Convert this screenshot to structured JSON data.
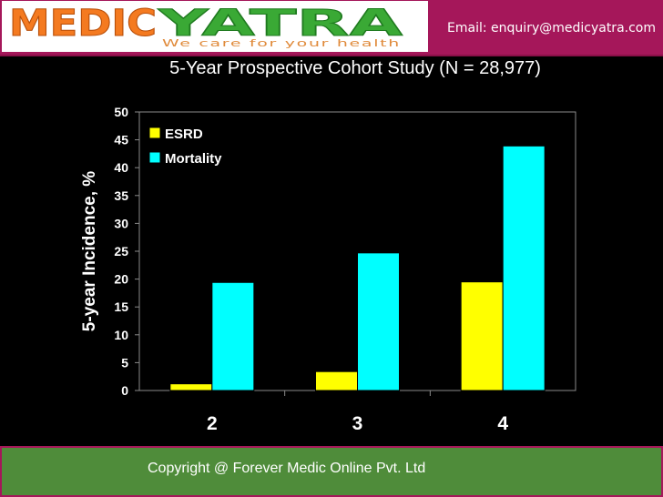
{
  "header": {
    "logo_text_left": "MEDIC",
    "logo_text_right": "YATRA",
    "tagline": "We care for your health",
    "email": "Email: enquiry@medicyatra.com",
    "colors": {
      "bar": "#a5175a",
      "logo_orange": "#f47a20",
      "logo_green": "#3aa935"
    }
  },
  "footer": {
    "copyright": "Copyright @ Forever Medic Online Pvt. Ltd",
    "colors": {
      "border": "#a5175a",
      "background": "#4f8c3a"
    }
  },
  "chart_data": {
    "type": "bar",
    "title": "5-Year Prospective Cohort Study (N = 28,977)",
    "xlabel": "",
    "ylabel": "5-year Incidence, %",
    "categories": [
      "2",
      "3",
      "4"
    ],
    "series": [
      {
        "name": "ESRD",
        "values": [
          1.2,
          3.4,
          19.5
        ],
        "color": "#ffff00"
      },
      {
        "name": "Mortality",
        "values": [
          19.4,
          24.7,
          43.9
        ],
        "color": "#00ffff"
      }
    ],
    "ylim": [
      0,
      50
    ],
    "yticks": [
      "0",
      "5",
      "10",
      "15",
      "20",
      "25",
      "30",
      "35",
      "40",
      "45",
      "50"
    ],
    "grid": false,
    "legend": "top-left"
  }
}
